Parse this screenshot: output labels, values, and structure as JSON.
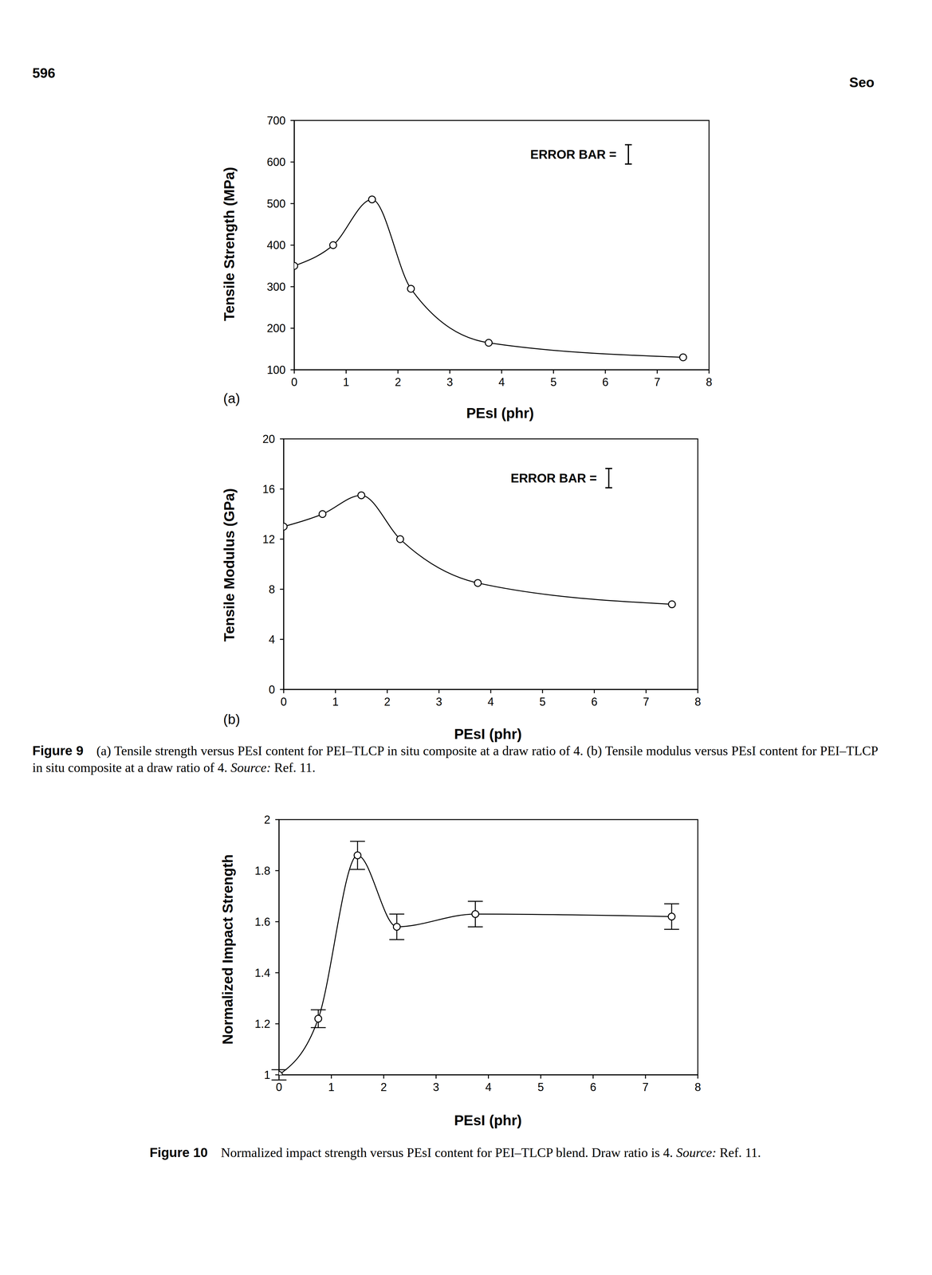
{
  "page": {
    "number": "596",
    "running_head": "Seo"
  },
  "chart_data": [
    {
      "type": "line",
      "x_label": "PEsI (phr)",
      "y_label": "Tensile Strength (MPa)",
      "annotations": [
        "(a)",
        "ERROR BAR ="
      ],
      "x": [
        0,
        0.75,
        1.5,
        2.25,
        3.75,
        7.5
      ],
      "values": [
        350,
        400,
        510,
        295,
        165,
        130
      ],
      "color": "#000000",
      "marker": "circle-open",
      "line_style": "solid",
      "xlim": [
        0,
        8
      ],
      "xticks": [
        0,
        1,
        2,
        3,
        4,
        5,
        6,
        7,
        8
      ],
      "ylim": [
        100,
        700
      ],
      "yticks": [
        100,
        200,
        300,
        400,
        500,
        600,
        700
      ]
    },
    {
      "type": "line",
      "x_label": "PEsI (phr)",
      "y_label": "Tensile Modulus (GPa)",
      "annotations": [
        "(b)",
        "ERROR BAR ="
      ],
      "x": [
        0,
        0.75,
        1.5,
        2.25,
        3.75,
        7.5
      ],
      "values": [
        13,
        14,
        15.5,
        12,
        8.5,
        6.8
      ],
      "color": "#000000",
      "marker": "circle-open",
      "line_style": "solid",
      "xlim": [
        0,
        8
      ],
      "xticks": [
        0,
        1,
        2,
        3,
        4,
        5,
        6,
        7,
        8
      ],
      "ylim": [
        0,
        20
      ],
      "yticks": [
        0,
        4,
        8,
        12,
        16,
        20
      ]
    },
    {
      "type": "line",
      "x_label": "PEsI (phr)",
      "y_label": "Normalized Impact Strength",
      "x": [
        0,
        0.75,
        1.5,
        2.25,
        3.75,
        7.5
      ],
      "values": [
        1,
        1.22,
        1.86,
        1.58,
        1.63,
        1.62
      ],
      "error": [
        0.02,
        0.035,
        0.055,
        0.05,
        0.05,
        0.05
      ],
      "color": "#000000",
      "marker": "circle-open",
      "line_style": "solid",
      "xlim": [
        0,
        8
      ],
      "xticks": [
        0,
        1,
        2,
        3,
        4,
        5,
        6,
        7,
        8
      ],
      "ylim": [
        1,
        2
      ],
      "yticks": [
        1,
        1.2,
        1.4,
        1.6,
        1.8,
        2
      ]
    }
  ],
  "captions": [
    {
      "label": "Figure 9",
      "text": "(a) Tensile strength versus PEsI content for PEI–TLCP in situ composite at a draw ratio of 4. (b) Tensile modulus versus PEsI content for PEI–TLCP in situ composite at a draw ratio of 4.",
      "source": "Source:",
      "ref": "Ref. 11."
    },
    {
      "label": "Figure 10",
      "text": "Normalized impact strength versus PEsI content for PEI–TLCP blend. Draw ratio is 4.",
      "source": "Source:",
      "ref": "Ref. 11."
    }
  ]
}
